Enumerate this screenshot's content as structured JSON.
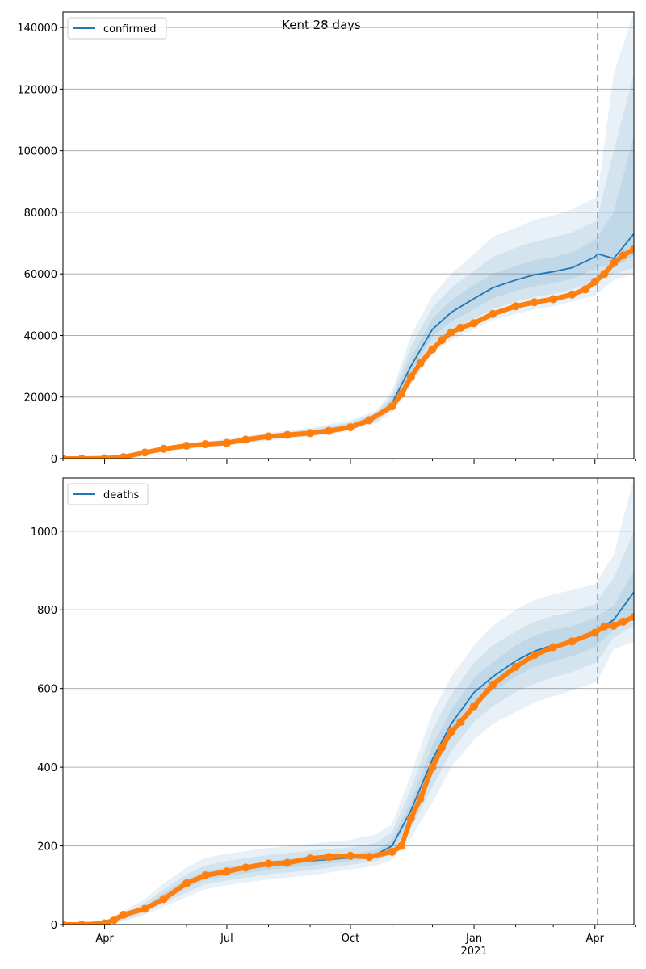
{
  "figure": {
    "title": "Kent 28 days",
    "forecast_start": "2021-04-03"
  },
  "colors": {
    "model_line": "#1f77b4",
    "band": "#1f77b4",
    "observed": "#ff7f0e",
    "forecast_line": "#7aaed6",
    "grid": "#b0b0b0"
  },
  "xaxis": {
    "range": [
      "2020-03-01",
      "2021-04-30"
    ],
    "major_ticks": [
      {
        "date": "2020-04-01",
        "label": "Apr",
        "sublabel": ""
      },
      {
        "date": "2020-07-01",
        "label": "Jul",
        "sublabel": ""
      },
      {
        "date": "2020-10-01",
        "label": "Oct",
        "sublabel": ""
      },
      {
        "date": "2021-01-01",
        "label": "Jan",
        "sublabel": "2021"
      },
      {
        "date": "2021-04-01",
        "label": "Apr",
        "sublabel": ""
      }
    ],
    "minor_ticks": [
      "2020-03-01",
      "2020-05-01",
      "2020-06-01",
      "2020-08-01",
      "2020-09-01",
      "2020-11-01",
      "2020-12-01",
      "2021-02-01",
      "2021-03-01",
      "2021-05-01"
    ]
  },
  "chart_data": [
    {
      "type": "line",
      "legend": "confirmed",
      "legend_position": "top-left",
      "grid": true,
      "ylim": [
        0,
        145000
      ],
      "yticks": [
        0,
        20000,
        40000,
        60000,
        80000,
        100000,
        120000,
        140000
      ],
      "ytick_labels": [
        "0",
        "20000",
        "40000",
        "60000",
        "80000",
        "100000",
        "120000",
        "140000"
      ],
      "model": {
        "x": [
          "2020-03-01",
          "2020-04-01",
          "2020-05-01",
          "2020-06-01",
          "2020-07-01",
          "2020-08-01",
          "2020-09-01",
          "2020-10-01",
          "2020-10-20",
          "2020-11-01",
          "2020-11-15",
          "2020-12-01",
          "2020-12-15",
          "2021-01-01",
          "2021-01-15",
          "2021-02-01",
          "2021-02-15",
          "2021-03-01",
          "2021-03-15",
          "2021-04-01",
          "2021-04-03",
          "2021-04-15",
          "2021-04-30"
        ],
        "y": [
          0,
          300,
          2000,
          4000,
          5200,
          7000,
          8500,
          10500,
          13500,
          18000,
          30000,
          42000,
          47500,
          52000,
          55500,
          58000,
          59700,
          60700,
          62000,
          65500,
          66500,
          65000,
          73000
        ],
        "bands": [
          {
            "lower": [
              0,
              200,
              1500,
              3200,
              4200,
              5800,
              7100,
              9000,
              11500,
              15000,
              24000,
              34000,
              38500,
              42000,
              45000,
              47000,
              48500,
              49500,
              51000,
              53000,
              53500,
              58000,
              60000
            ],
            "upper": [
              0,
              500,
              2600,
              5000,
              6400,
              8400,
              10000,
              12500,
              15500,
              22000,
              40000,
              53000,
              60000,
              66500,
              72000,
              75000,
              77500,
              79000,
              81000,
              84500,
              86000,
              125000,
              145000
            ]
          },
          {
            "lower": [
              0,
              220,
              1650,
              3450,
              4500,
              6200,
              7500,
              9400,
              12000,
              16000,
              26000,
              37000,
              41500,
              45500,
              48500,
              51000,
              52500,
              53500,
              55000,
              57500,
              58000,
              60000,
              62000
            ],
            "upper": [
              0,
              420,
              2400,
              4650,
              6000,
              7900,
              9500,
              11800,
              15000,
              20500,
              36500,
              49000,
              55500,
              61000,
              65500,
              68500,
              70500,
              71800,
              73500,
              77000,
              78500,
              100000,
              125000
            ]
          },
          {
            "lower": [
              0,
              250,
              1800,
              3700,
              4850,
              6600,
              8000,
              9900,
              12700,
              17000,
              28000,
              39500,
              44500,
              48500,
              52000,
              54500,
              56000,
              57000,
              58500,
              61500,
              62500,
              62000,
              66000
            ],
            "upper": [
              0,
              360,
              2200,
              4300,
              5600,
              7400,
              9000,
              11200,
              14300,
              19500,
              33000,
              45500,
              51500,
              56500,
              60000,
              62500,
              64500,
              65500,
              67000,
              71000,
              72000,
              80000,
              105000
            ]
          }
        ]
      },
      "observed": {
        "x": [
          "2020-03-01",
          "2020-03-15",
          "2020-04-01",
          "2020-04-15",
          "2020-05-01",
          "2020-05-15",
          "2020-06-01",
          "2020-06-15",
          "2020-07-01",
          "2020-07-15",
          "2020-08-01",
          "2020-08-15",
          "2020-09-01",
          "2020-09-15",
          "2020-10-01",
          "2020-10-15",
          "2020-11-01",
          "2020-11-08",
          "2020-11-15",
          "2020-11-22",
          "2020-12-01",
          "2020-12-08",
          "2020-12-15",
          "2020-12-22",
          "2021-01-01",
          "2021-01-15",
          "2021-02-01",
          "2021-02-15",
          "2021-03-01",
          "2021-03-15",
          "2021-03-25",
          "2021-04-01",
          "2021-04-08",
          "2021-04-15",
          "2021-04-22",
          "2021-04-30"
        ],
        "y": [
          0,
          0,
          100,
          500,
          2000,
          3200,
          4200,
          4700,
          5100,
          6200,
          7200,
          7700,
          8300,
          9000,
          10200,
          12500,
          17000,
          21000,
          26500,
          31000,
          35500,
          38500,
          41000,
          42500,
          44000,
          47000,
          49500,
          50800,
          51800,
          53300,
          55000,
          57500,
          60000,
          63500,
          66000,
          68000
        ]
      }
    },
    {
      "type": "line",
      "legend": "deaths",
      "legend_position": "top-left",
      "grid": true,
      "ylim": [
        0,
        1135
      ],
      "yticks": [
        0,
        200,
        400,
        600,
        800,
        1000
      ],
      "ytick_labels": [
        "0",
        "200",
        "400",
        "600",
        "800",
        "1000"
      ],
      "model": {
        "x": [
          "2020-03-01",
          "2020-04-01",
          "2020-04-15",
          "2020-05-01",
          "2020-05-15",
          "2020-06-01",
          "2020-06-15",
          "2020-07-01",
          "2020-08-01",
          "2020-09-01",
          "2020-10-01",
          "2020-10-20",
          "2020-11-01",
          "2020-11-15",
          "2020-12-01",
          "2020-12-15",
          "2021-01-01",
          "2021-01-15",
          "2021-02-01",
          "2021-02-15",
          "2021-03-01",
          "2021-03-15",
          "2021-04-01",
          "2021-04-03",
          "2021-04-15",
          "2021-04-30"
        ],
        "y": [
          0,
          3,
          20,
          40,
          70,
          105,
          125,
          135,
          150,
          162,
          170,
          178,
          200,
          290,
          420,
          510,
          590,
          630,
          670,
          695,
          710,
          720,
          742,
          748,
          775,
          845
        ],
        "bands": [
          {
            "lower": [
              0,
              0,
              8,
              25,
              45,
              70,
              90,
              100,
              115,
              125,
              140,
              150,
              165,
              220,
              310,
              400,
              470,
              510,
              540,
              565,
              580,
              595,
              615,
              620,
              700,
              720
            ],
            "upper": [
              0,
              8,
              35,
              65,
              105,
              145,
              170,
              180,
              195,
              205,
              215,
              230,
              255,
              380,
              540,
              630,
              710,
              760,
              800,
              825,
              840,
              850,
              865,
              875,
              940,
              1135
            ]
          },
          {
            "lower": [
              0,
              1,
              12,
              30,
              55,
              82,
              102,
              112,
              128,
              138,
              152,
              162,
              180,
              245,
              350,
              440,
              515,
              555,
              590,
              612,
              628,
              642,
              665,
              670,
              730,
              760
            ],
            "upper": [
              0,
              6,
              28,
              55,
              90,
              128,
              150,
              162,
              177,
              188,
              196,
              208,
              235,
              345,
              495,
              585,
              665,
              710,
              745,
              770,
              785,
              795,
              815,
              825,
              880,
              1000
            ]
          },
          {
            "lower": [
              0,
              2,
              16,
              35,
              62,
              94,
              114,
              124,
              139,
              150,
              162,
              170,
              190,
              265,
              385,
              475,
              553,
              593,
              630,
              655,
              670,
              682,
              705,
              710,
              750,
              795
            ],
            "upper": [
              0,
              4,
              24,
              46,
              80,
              116,
              136,
              146,
              161,
              174,
              178,
              190,
              215,
              315,
              455,
              545,
              627,
              667,
              710,
              735,
              750,
              758,
              780,
              785,
              810,
              900
            ]
          }
        ]
      },
      "observed": {
        "x": [
          "2020-03-01",
          "2020-03-15",
          "2020-04-01",
          "2020-04-08",
          "2020-04-15",
          "2020-05-01",
          "2020-05-15",
          "2020-06-01",
          "2020-06-15",
          "2020-07-01",
          "2020-07-15",
          "2020-08-01",
          "2020-08-15",
          "2020-09-01",
          "2020-09-15",
          "2020-10-01",
          "2020-10-15",
          "2020-11-01",
          "2020-11-08",
          "2020-11-15",
          "2020-11-22",
          "2020-12-01",
          "2020-12-08",
          "2020-12-15",
          "2020-12-22",
          "2021-01-01",
          "2021-01-15",
          "2021-02-01",
          "2021-02-15",
          "2021-03-01",
          "2021-03-15",
          "2021-04-01",
          "2021-04-08",
          "2021-04-15",
          "2021-04-22",
          "2021-04-30"
        ],
        "y": [
          0,
          0,
          3,
          12,
          25,
          40,
          65,
          105,
          125,
          135,
          145,
          155,
          157,
          168,
          172,
          175,
          172,
          185,
          200,
          270,
          320,
          400,
          450,
          490,
          515,
          555,
          610,
          655,
          685,
          705,
          720,
          742,
          758,
          760,
          770,
          782
        ]
      }
    }
  ]
}
